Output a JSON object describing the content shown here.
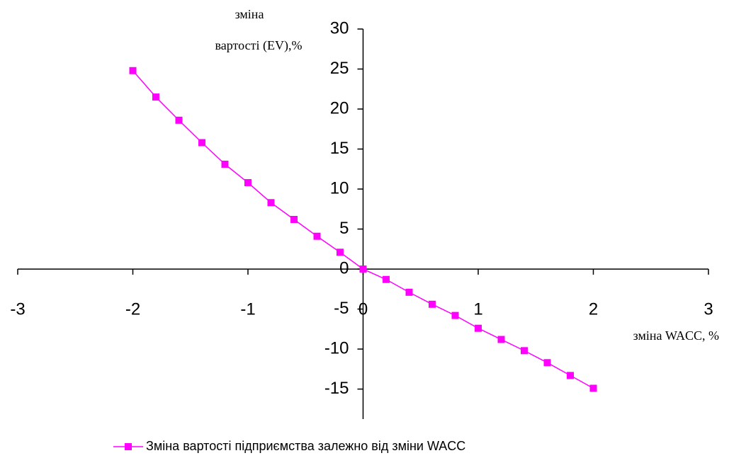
{
  "chart_data": {
    "type": "line",
    "y_label": [
      "зміна",
      "вартості (EV),%"
    ],
    "x_label": "зміна WACC, %",
    "x": [
      -2,
      -1.8,
      -1.6,
      -1.4,
      -1.2,
      -1,
      -0.8,
      -0.6,
      -0.4,
      -0.2,
      0,
      0.2,
      0.4,
      0.6,
      0.8,
      1,
      1.2,
      1.4,
      1.6,
      1.8,
      2
    ],
    "series": [
      {
        "name": "Зміна вартості підприємства залежно від зміни WACC",
        "color": "#ff00ff",
        "values": [
          24.8,
          21.5,
          18.6,
          15.8,
          13.1,
          10.8,
          8.3,
          6.2,
          4.1,
          2.1,
          0,
          -1.3,
          -2.9,
          -4.4,
          -5.8,
          -7.4,
          -8.8,
          -10.2,
          -11.7,
          -13.3,
          -14.9
        ]
      }
    ],
    "xlim": [
      -3,
      3
    ],
    "xticks": [
      -3,
      -2,
      -1,
      0,
      1,
      2,
      3
    ],
    "ylim": [
      -18.75,
      30
    ],
    "yticks": [
      -15,
      -10,
      -5,
      0,
      5,
      10,
      15,
      20,
      25,
      30
    ],
    "legend": "bottom"
  }
}
